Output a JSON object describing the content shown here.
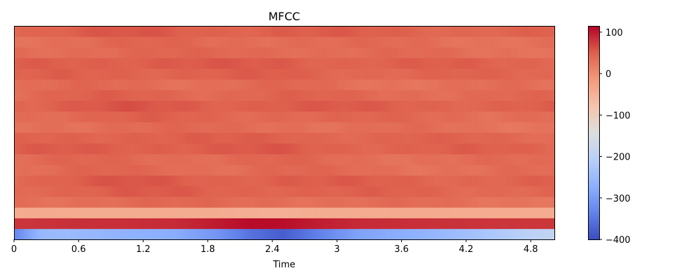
{
  "chart_data": {
    "type": "heatmap",
    "title": "MFCC",
    "xlabel": "Time",
    "ylabel": "",
    "xlim": [
      0,
      5.02
    ],
    "x_ticks": [
      0,
      0.6,
      1.2,
      1.8,
      2.4,
      3,
      3.6,
      4.2,
      4.8
    ],
    "x_tick_labels": [
      "0",
      "0.6",
      "1.2",
      "1.8",
      "2.4",
      "3",
      "3.6",
      "4.2",
      "4.8"
    ],
    "n_coefficients": 20,
    "colormap": "coolwarm",
    "colorbar": {
      "range": [
        -400,
        115
      ],
      "ticks": [
        100,
        0,
        -100,
        -200,
        -300,
        -400
      ],
      "tick_labels": [
        "100",
        "0",
        "−100",
        "−200",
        "−300",
        "−400"
      ]
    },
    "columns": [
      {
        "t": 0.0,
        "c0": -330,
        "c1": 80,
        "c2": -40,
        "rest": 40
      },
      {
        "t": 0.25,
        "c0": -255,
        "c1": 82,
        "c2": -38,
        "rest": 42
      },
      {
        "t": 0.5,
        "c0": -250,
        "c1": 84,
        "c2": -40,
        "rest": 45
      },
      {
        "t": 1.0,
        "c0": -265,
        "c1": 85,
        "c2": -42,
        "rest": 48
      },
      {
        "t": 1.5,
        "c0": -275,
        "c1": 88,
        "c2": -40,
        "rest": 46
      },
      {
        "t": 1.9,
        "c0": -310,
        "c1": 100,
        "c2": -42,
        "rest": 44
      },
      {
        "t": 2.2,
        "c0": -355,
        "c1": 110,
        "c2": -45,
        "rest": 45
      },
      {
        "t": 2.5,
        "c0": -380,
        "c1": 108,
        "c2": -46,
        "rest": 47
      },
      {
        "t": 2.8,
        "c0": -340,
        "c1": 98,
        "c2": -42,
        "rest": 44
      },
      {
        "t": 3.2,
        "c0": -290,
        "c1": 88,
        "c2": -40,
        "rest": 42
      },
      {
        "t": 3.8,
        "c0": -265,
        "c1": 84,
        "c2": -38,
        "rest": 41
      },
      {
        "t": 4.3,
        "c0": -235,
        "c1": 82,
        "c2": -40,
        "rest": 40
      },
      {
        "t": 4.8,
        "c0": -200,
        "c1": 80,
        "c2": -40,
        "rest": 40
      },
      {
        "t": 5.02,
        "c0": -190,
        "c1": 80,
        "c2": -40,
        "rest": 40
      }
    ]
  }
}
